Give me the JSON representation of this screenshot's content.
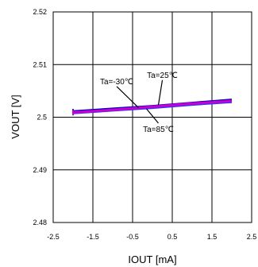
{
  "chart_data": {
    "type": "line",
    "xlabel": "IOUT [mA]",
    "ylabel": "VOUT [V]",
    "xlim": [
      -2.5,
      2.5
    ],
    "ylim": [
      2.48,
      2.52
    ],
    "x_ticks": [
      -2.5,
      -1.5,
      -0.5,
      0.5,
      1.5,
      2.5
    ],
    "y_ticks": [
      2.48,
      2.49,
      2.5,
      2.51,
      2.52
    ],
    "x_tick_labels": [
      "-2.5",
      "-1.5",
      "-0.5",
      "0.5",
      "1.5",
      "2.5"
    ],
    "y_tick_labels": [
      "2.48",
      "2.49",
      "2.5",
      "2.51",
      "2.52"
    ],
    "grid": true,
    "series": [
      {
        "color": "#0000cc",
        "x": [
          -2,
          -1,
          0,
          1,
          2
        ],
        "y": [
          2.5011,
          2.5016,
          2.5021,
          2.5027,
          2.5033
        ]
      },
      {
        "color": "#3333ff",
        "x": [
          -2,
          -1,
          0,
          1,
          2
        ],
        "y": [
          2.5008,
          2.5013,
          2.5018,
          2.5024,
          2.5029
        ]
      },
      {
        "color": "#cc00cc",
        "x": [
          -2,
          -1,
          0,
          1,
          2
        ],
        "y": [
          2.5009,
          2.5014,
          2.502,
          2.5026,
          2.5031
        ]
      }
    ],
    "annotations": [
      {
        "text": "Ta=-30℃",
        "x": -0.9,
        "y": 2.5063,
        "target_x": -0.35,
        "target_y": 2.5018
      },
      {
        "text": "Ta=25℃",
        "x": 0.25,
        "y": 2.5075,
        "target_x": 0.15,
        "target_y": 2.5023
      },
      {
        "text": "Ta=85℃",
        "x": 0.15,
        "y": 2.4972,
        "target_x": -0.15,
        "target_y": 2.5016
      }
    ]
  }
}
